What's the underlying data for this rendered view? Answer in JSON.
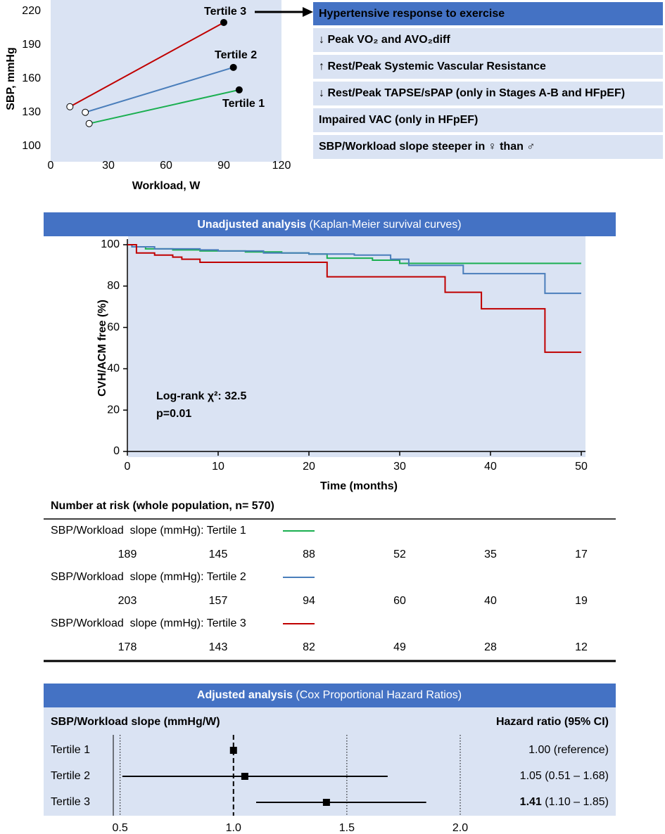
{
  "chart_data": [
    {
      "type": "line",
      "ylabel": "SBP, mmHg",
      "xlabel": "Workload, W",
      "xlim": [
        0,
        120
      ],
      "ylim": [
        86,
        230
      ],
      "xticks": [
        0,
        30,
        60,
        90,
        120
      ],
      "yticks": [
        100,
        130,
        160,
        190,
        220
      ],
      "series": [
        {
          "name": "Tertile 1",
          "color": "#1aaf50",
          "x": [
            20,
            98
          ],
          "values": [
            120,
            150
          ]
        },
        {
          "name": "Tertile 2",
          "color": "#4a7ebb",
          "x": [
            18,
            95
          ],
          "values": [
            130,
            170
          ]
        },
        {
          "name": "Tertile 3",
          "color": "#c00000",
          "x": [
            10,
            90
          ],
          "values": [
            135,
            210
          ]
        }
      ]
    },
    {
      "type": "step",
      "title": "Unadjusted analysis",
      "subtitle": "(Kaplan-Meier survival curves)",
      "xlabel": "Time (months)",
      "ylabel": "CVH/ACM free (%)",
      "xlim": [
        0,
        50
      ],
      "ylim": [
        0,
        100
      ],
      "xticks": [
        0,
        10,
        20,
        30,
        40,
        50
      ],
      "yticks": [
        0,
        20,
        40,
        60,
        80,
        100
      ],
      "annotations": [
        "Log-rank χ²: 32.5",
        "p=0.01"
      ],
      "series": [
        {
          "name": "Tertile 1",
          "color": "#1aaf50",
          "x": [
            0,
            0.5,
            2,
            5,
            8,
            13,
            17,
            20,
            22,
            27,
            30,
            50
          ],
          "values": [
            100,
            99,
            98,
            97.5,
            97,
            96.5,
            96,
            95.5,
            93.5,
            92.5,
            91,
            91
          ]
        },
        {
          "name": "Tertile 2",
          "color": "#4a7ebb",
          "x": [
            0,
            0.5,
            3,
            8,
            10,
            15,
            20,
            25,
            29,
            31,
            37,
            46,
            50
          ],
          "values": [
            100,
            99,
            98,
            97.5,
            97,
            96,
            95.5,
            95,
            93,
            90,
            86,
            76.5,
            76.5
          ]
        },
        {
          "name": "Tertile 3",
          "color": "#c00000",
          "x": [
            0,
            1,
            3,
            5,
            6,
            8,
            22,
            35,
            39,
            46,
            50
          ],
          "values": [
            100,
            96,
            95,
            94,
            93,
            91.5,
            84.5,
            77,
            69,
            48,
            48
          ]
        }
      ]
    },
    {
      "type": "forest",
      "title": "Adjusted analysis",
      "subtitle": "(Cox Proportional Hazard Ratios)",
      "category_header": "SBP/Workload slope (mmHg/W)",
      "value_header": "Hazard ratio (95% CI)",
      "categories": [
        "Tertile 1",
        "Tertile 2",
        "Tertile 3"
      ],
      "values": [
        1.0,
        1.05,
        1.41
      ],
      "value_labels": [
        "1.00",
        "1.05",
        "1.41"
      ],
      "ci_low": [
        null,
        0.51,
        1.1
      ],
      "ci_high": [
        null,
        1.68,
        1.85
      ],
      "ci_labels": [
        "(reference)",
        "(0.51 – 1.68)",
        "(1.10 – 1.85)"
      ],
      "bold": [
        false,
        false,
        true
      ],
      "reference": 1,
      "xlim": [
        0.47,
        2.0
      ],
      "xticks": [
        0.5,
        {
          "value": 1,
          "label": "1.0"
        },
        1.5,
        {
          "value": 2,
          "label": "2.0"
        }
      ]
    }
  ],
  "findings": {
    "title": "Hypertensive response to exercise",
    "items": [
      "↓ Peak VO₂ and AVO₂diff",
      "↑ Rest/Peak Systemic Vascular Resistance",
      "↓ Rest/Peak TAPSE/sPAP (only in Stages A-B and HFpEF)",
      "Impaired VAC (only in HFpEF)",
      "SBP/Workload slope steeper in ♀ than ♂"
    ]
  },
  "risk_table": {
    "title": "Number at risk (whole population, n= 570)",
    "rows": [
      {
        "label": "SBP/Workload  slope (mmHg): Tertile 1",
        "color": "#1aaf50",
        "values": [
          189,
          145,
          88,
          52,
          35,
          17
        ]
      },
      {
        "label": "SBP/Workload  slope (mmHg): Tertile 2",
        "color": "#4a7ebb",
        "values": [
          203,
          157,
          94,
          60,
          40,
          19
        ]
      },
      {
        "label": "SBP/Workload  slope (mmHg): Tertile 3",
        "color": "#c00000",
        "values": [
          178,
          143,
          82,
          49,
          28,
          12
        ]
      }
    ]
  }
}
